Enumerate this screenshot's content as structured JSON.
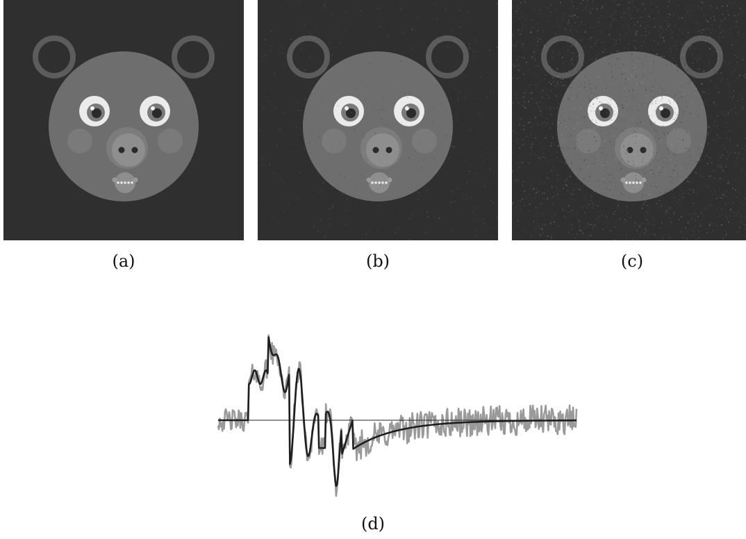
{
  "figure": {
    "panels": [
      {
        "id": "a",
        "caption": "(a)",
        "variant": "original",
        "noise": 0
      },
      {
        "id": "b",
        "caption": "(b)",
        "variant": "reconstruction-mild",
        "noise": 0.25
      },
      {
        "id": "c",
        "caption": "(c)",
        "variant": "reconstruction-noisy",
        "noise": 1
      }
    ],
    "signal_caption": "(d)"
  },
  "colors": {
    "background": "#2f2f2f",
    "face": "#6e6e6e",
    "ears": "#5c5c5c",
    "cheeks": "#7a7a7a",
    "snout": "#8e8e8e",
    "eye_white": "#ebebeb",
    "iris": "#7a7a7a",
    "pupil": "#2a2a2a",
    "noisy_trace": "#9a9a9a",
    "smooth_trace": "#1e1e1e",
    "baseline": "#222222"
  },
  "chart_data": {
    "type": "line",
    "series": [
      {
        "style": "noisy",
        "values": []
      },
      {
        "style": "smooth",
        "values": []
      }
    ],
    "baseline": 0
  }
}
